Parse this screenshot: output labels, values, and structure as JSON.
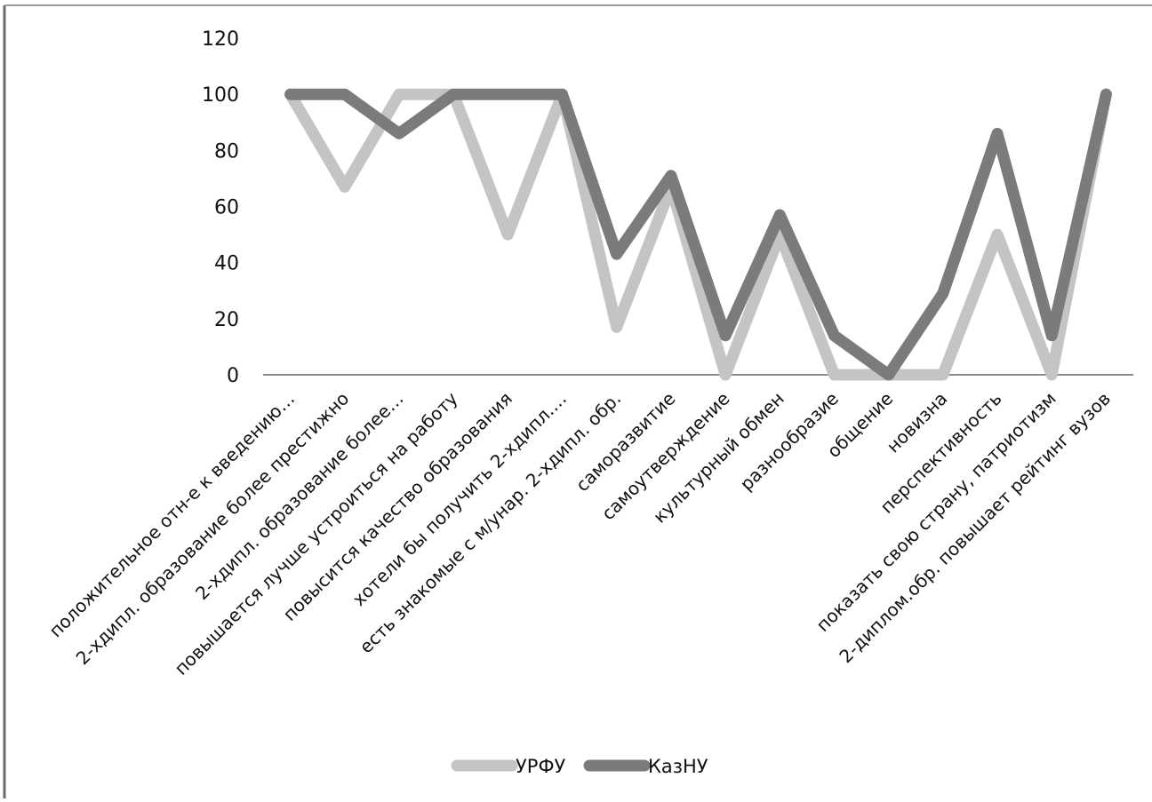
{
  "chart_data": {
    "type": "line",
    "title": "",
    "xlabel": "",
    "ylabel": "",
    "ylim": [
      0,
      120
    ],
    "yticks": [
      0,
      20,
      40,
      60,
      80,
      100,
      120
    ],
    "grid": false,
    "legend": "bottom",
    "categories": [
      "положительное отн-е к введению…",
      "2-хдипл. образование более престижно",
      "2-хдипл. образование более…",
      "повышается лучше устроиться на работу",
      "повысится качество образования",
      "хотели бы получить 2-хдипл.…",
      "есть знакомые с м/унар. 2-хдипл. обр.",
      "саморазвитие",
      "самоутверждение",
      "культурный обмен",
      "разнообразие",
      "общение",
      "новизна",
      "перспективность",
      "показать свою страну, патриотизм",
      "2-диплом.обр. повышает рейтинг вузов"
    ],
    "series": [
      {
        "name": "УРФУ",
        "color": "#c4c4c4",
        "values": [
          100,
          67,
          100,
          100,
          50,
          100,
          17,
          67,
          0,
          50,
          0,
          0,
          0,
          50,
          0,
          100
        ]
      },
      {
        "name": "КазНУ",
        "color": "#7b7b7b",
        "values": [
          100,
          100,
          86,
          100,
          100,
          100,
          43,
          71,
          14,
          57,
          14,
          0,
          29,
          86,
          14,
          100
        ]
      }
    ]
  }
}
